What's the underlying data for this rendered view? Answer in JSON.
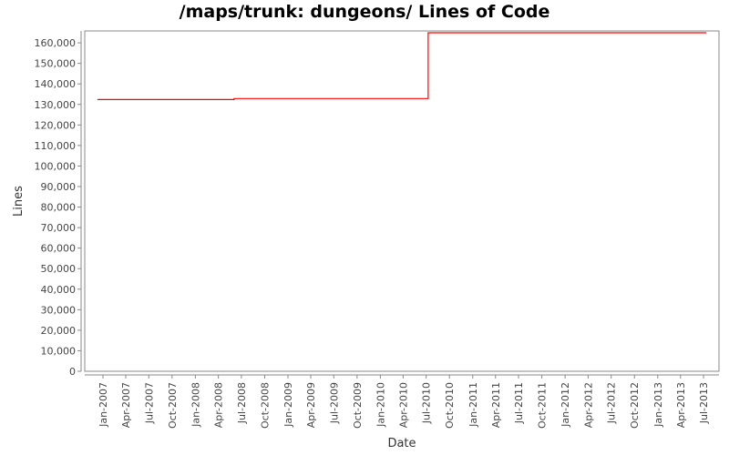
{
  "chart_data": {
    "type": "line",
    "title": "/maps/trunk: dungeons/ Lines of Code",
    "xlabel": "Date",
    "ylabel": "Lines",
    "step": "post",
    "series": [
      {
        "color": "#ff0000",
        "points": [
          {
            "x": "2006-12-10",
            "y": 132400
          },
          {
            "x": "2008-06-02",
            "y": 132850
          },
          {
            "x": "2010-07-09",
            "y": 164900
          },
          {
            "x": "2013-07-12",
            "y": 164900
          }
        ]
      }
    ],
    "xlim": [
      "2006-10-21",
      "2013-08-31"
    ],
    "ylim": [
      0,
      165800
    ],
    "yticks": [
      0,
      10000,
      20000,
      30000,
      40000,
      50000,
      60000,
      70000,
      80000,
      90000,
      100000,
      110000,
      120000,
      130000,
      140000,
      150000,
      160000
    ],
    "ytick_labels": [
      "0",
      "10,000",
      "20,000",
      "30,000",
      "40,000",
      "50,000",
      "60,000",
      "70,000",
      "80,000",
      "90,000",
      "100,000",
      "110,000",
      "120,000",
      "130,000",
      "140,000",
      "150,000",
      "160,000"
    ],
    "xticks": [
      "2007-01-01",
      "2007-04-01",
      "2007-07-01",
      "2007-10-01",
      "2008-01-01",
      "2008-04-01",
      "2008-07-01",
      "2008-10-01",
      "2009-01-01",
      "2009-04-01",
      "2009-07-01",
      "2009-10-01",
      "2010-01-01",
      "2010-04-01",
      "2010-07-01",
      "2010-10-01",
      "2011-01-01",
      "2011-04-01",
      "2011-07-01",
      "2011-10-01",
      "2012-01-01",
      "2012-04-01",
      "2012-07-01",
      "2012-10-01",
      "2013-01-01",
      "2013-04-01",
      "2013-07-01"
    ],
    "xtick_labels": [
      "Jan-2007",
      "Apr-2007",
      "Jul-2007",
      "Oct-2007",
      "Jan-2008",
      "Apr-2008",
      "Jul-2008",
      "Oct-2008",
      "Jan-2009",
      "Apr-2009",
      "Jul-2009",
      "Oct-2009",
      "Jan-2010",
      "Apr-2010",
      "Jul-2010",
      "Oct-2010",
      "Jan-2011",
      "Apr-2011",
      "Jul-2011",
      "Oct-2011",
      "Jan-2012",
      "Apr-2012",
      "Jul-2012",
      "Oct-2012",
      "Jan-2013",
      "Apr-2013",
      "Jul-2013"
    ],
    "grid": false,
    "legend": "none"
  }
}
